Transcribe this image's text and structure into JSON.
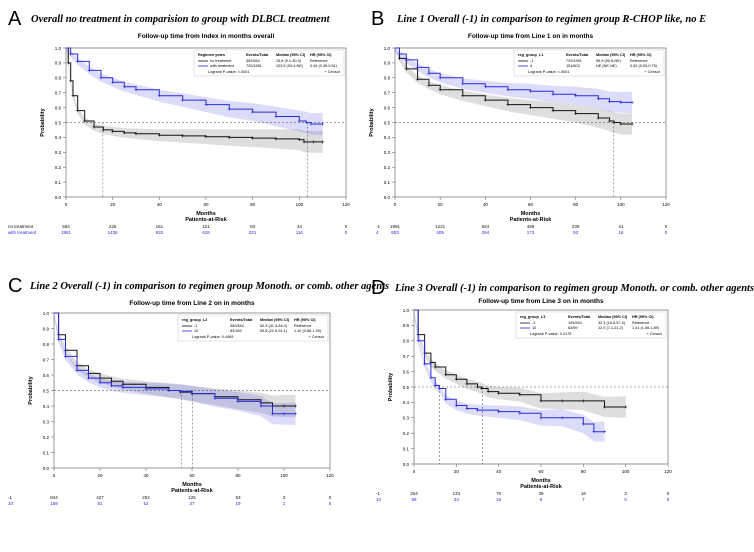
{
  "panels": [
    {
      "letter": "A",
      "caption": "Overall no treatment in comparision to group with DLBCL treatment",
      "chart_data": {
        "type": "line",
        "title": "Follow-up time from Index in months overall",
        "xlabel": "Months",
        "ylabel": "Probability",
        "xlim": [
          0,
          120
        ],
        "ylim": [
          0,
          1.0
        ],
        "x_ticks": [
          0,
          20,
          40,
          60,
          80,
          100,
          120
        ],
        "y_ticks": [
          0.0,
          0.1,
          0.2,
          0.3,
          0.4,
          0.5,
          0.6,
          0.7,
          0.8,
          0.9,
          1.0
        ],
        "legend": {
          "placement": "top-right",
          "header": [
            "Regimen years",
            "Events/Total",
            "Median (95% CI)",
            "HR (95% CI)"
          ],
          "rows": [
            [
              "no treatment",
              "392/564",
              "15.8 (9.1-30.3)",
              "Reference"
            ],
            [
              "with treatment",
              "729/1981",
              "103.5 (93.4-NE)",
              "0.44 (0.39-0.51)"
            ]
          ],
          "pvalue": "Logrank P-value: <.0001",
          "censor": "+ Censor"
        },
        "series": [
          {
            "name": "no treatment",
            "color": "#111111",
            "x": [
              0,
              1,
              2,
              3,
              5,
              8,
              12,
              16,
              20,
              25,
              30,
              40,
              50,
              60,
              70,
              80,
              90,
              100,
              102,
              106,
              110
            ],
            "y": [
              1.0,
              0.9,
              0.78,
              0.68,
              0.58,
              0.51,
              0.47,
              0.45,
              0.44,
              0.43,
              0.425,
              0.415,
              0.41,
              0.405,
              0.4,
              0.395,
              0.39,
              0.385,
              0.37,
              0.37,
              0.37
            ]
          },
          {
            "name": "with treatment",
            "color": "#2a2ad6",
            "x": [
              0,
              2,
              5,
              10,
              15,
              20,
              25,
              30,
              40,
              50,
              60,
              70,
              80,
              90,
              100,
              103,
              105,
              110
            ],
            "y": [
              1.0,
              0.96,
              0.91,
              0.85,
              0.8,
              0.77,
              0.74,
              0.72,
              0.68,
              0.65,
              0.62,
              0.59,
              0.57,
              0.54,
              0.51,
              0.5,
              0.49,
              0.49
            ]
          }
        ],
        "reference_lines": {
          "y": 0.5,
          "x": [
            15.8,
            103.5
          ]
        },
        "risk_table": {
          "title": "Patients-at-Risk",
          "rows": [
            {
              "label": "no treatment",
              "color": "#111111",
              "values": [
                "564",
                "225",
                "161",
                "121",
                "83",
                "34",
                "0"
              ]
            },
            {
              "label": "with treatment",
              "color": "#2a2ad6",
              "values": [
                "1981",
                "1436",
                "933",
                "618",
                "321",
                "116",
                "0"
              ]
            }
          ]
        }
      }
    },
    {
      "letter": "B",
      "caption": "Line 1 Overall (-1) in comparison to regimen group R-CHOP like, no E",
      "chart_data": {
        "type": "line",
        "title": "Follow-up time from Line 1 on in months",
        "xlabel": "Months",
        "ylabel": "Probability",
        "xlim": [
          0,
          120
        ],
        "ylim": [
          0,
          1.0
        ],
        "x_ticks": [
          0,
          20,
          40,
          60,
          80,
          100,
          120
        ],
        "y_ticks": [
          0.0,
          0.1,
          0.2,
          0.3,
          0.4,
          0.5,
          0.6,
          0.7,
          0.8,
          0.9,
          1.0
        ],
        "legend": {
          "placement": "top",
          "header": [
            "reg_group_L1",
            "Events/Total",
            "Median (95% CI)",
            "HR (95% CI)"
          ],
          "rows": [
            [
              "-1",
              "729/1991",
              "96.9 (90.6-NE)",
              "Reference"
            ],
            [
              "4",
              "151/603",
              "NE (NE-NE)",
              "0.63 (0.53-0.75)"
            ]
          ],
          "pvalue": "Logrank P-value: <.0001",
          "censor": "+ Censor"
        },
        "series": [
          {
            "name": "-1",
            "color": "#111111",
            "x": [
              0,
              2,
              5,
              10,
              15,
              20,
              30,
              40,
              50,
              60,
              70,
              80,
              90,
              95,
              97,
              100,
              105
            ],
            "y": [
              1.0,
              0.93,
              0.86,
              0.79,
              0.75,
              0.72,
              0.68,
              0.65,
              0.62,
              0.6,
              0.58,
              0.56,
              0.53,
              0.51,
              0.5,
              0.49,
              0.49
            ]
          },
          {
            "name": "4",
            "color": "#2a2ad6",
            "x": [
              0,
              2,
              5,
              10,
              15,
              20,
              30,
              40,
              50,
              60,
              70,
              80,
              90,
              95,
              100,
              105
            ],
            "y": [
              1.0,
              0.96,
              0.92,
              0.87,
              0.83,
              0.8,
              0.76,
              0.74,
              0.72,
              0.71,
              0.69,
              0.68,
              0.66,
              0.64,
              0.635,
              0.635
            ]
          }
        ],
        "reference_lines": {
          "y": 0.5,
          "x": [
            96.9
          ]
        },
        "risk_table": {
          "title": "Patients-at-Risk",
          "rows": [
            {
              "label": "-1",
              "color": "#111111",
              "values": [
                "1991",
                "1221",
                "824",
                "489",
                "239",
                "41",
                "0"
              ]
            },
            {
              "label": "4",
              "color": "#2a2ad6",
              "values": [
                "603",
                "409",
                "294",
                "173",
                "93",
                "16",
                "0"
              ]
            }
          ]
        }
      }
    },
    {
      "letter": "C",
      "caption": "Line 2 Overall (-1) in comparison to regimen group Monoth. or comb. other agents",
      "chart_data": {
        "type": "line",
        "title": "Follow-up time from Line 2 on in months",
        "xlabel": "Months",
        "ylabel": "Probability",
        "xlim": [
          0,
          120
        ],
        "ylim": [
          0,
          1.0
        ],
        "x_ticks": [
          0,
          20,
          40,
          60,
          80,
          100,
          120
        ],
        "y_ticks": [
          0.0,
          0.1,
          0.2,
          0.3,
          0.4,
          0.5,
          0.6,
          0.7,
          0.8,
          0.9,
          1.0
        ],
        "legend": {
          "placement": "top-right",
          "header": [
            "reg_group_L2",
            "Events/Total",
            "Median (95% CI)",
            "HR (95% CI)"
          ],
          "rows": [
            [
              "-1",
              "362/844",
              "60.3 (41.3-84.0)",
              "Reference"
            ],
            [
              "10",
              "83/169",
              "55.5 (22.9-91.1)",
              "1.10 (0.86-1.39)"
            ]
          ],
          "pvalue": "Logrank P-value: 0.4469",
          "censor": "+ Censor"
        },
        "series": [
          {
            "name": "-1",
            "color": "#111111",
            "x": [
              0,
              2,
              5,
              10,
              15,
              20,
              25,
              30,
              40,
              50,
              55,
              60,
              70,
              80,
              90,
              95,
              100,
              105
            ],
            "y": [
              1.0,
              0.86,
              0.76,
              0.66,
              0.61,
              0.58,
              0.56,
              0.54,
              0.52,
              0.5,
              0.49,
              0.48,
              0.46,
              0.44,
              0.42,
              0.4,
              0.4,
              0.4
            ]
          },
          {
            "name": "10",
            "color": "#2a2ad6",
            "x": [
              0,
              2,
              5,
              10,
              15,
              20,
              25,
              30,
              40,
              50,
              55,
              60,
              70,
              80,
              90,
              95,
              100,
              105
            ],
            "y": [
              1.0,
              0.83,
              0.72,
              0.63,
              0.58,
              0.55,
              0.53,
              0.52,
              0.51,
              0.5,
              0.495,
              0.48,
              0.45,
              0.43,
              0.4,
              0.35,
              0.35,
              0.35
            ]
          }
        ],
        "reference_lines": {
          "y": 0.5,
          "x": [
            55.5,
            60.3
          ]
        },
        "risk_table": {
          "title": "Patients-at-Risk",
          "rows": [
            {
              "label": "-1",
              "color": "#111111",
              "values": [
                "844",
                "427",
                "252",
                "125",
                "53",
                "3",
                "0"
              ]
            },
            {
              "label": "10",
              "color": "#2a2ad6",
              "values": [
                "169",
                "81",
                "52",
                "37",
                "19",
                "1",
                "0"
              ]
            }
          ]
        }
      }
    },
    {
      "letter": "D",
      "caption": "Line 3 Overall (-1) in comparison to regimen group Monoth. or comb. other agents",
      "chart_data": {
        "type": "line",
        "title": "Follow-up time from Line 3 on in months",
        "xlabel": "Months",
        "ylabel": "Probability",
        "xlim": [
          0,
          120
        ],
        "ylim": [
          0,
          1.0
        ],
        "x_ticks": [
          0,
          20,
          40,
          60,
          80,
          100,
          120
        ],
        "y_ticks": [
          0.0,
          0.1,
          0.2,
          0.3,
          0.4,
          0.5,
          0.6,
          0.7,
          0.8,
          0.9,
          1.0
        ],
        "legend": {
          "placement": "top-right",
          "header": [
            "reg_group_L3",
            "Events/Total",
            "Median (95% CI)",
            "HR (95% CI)"
          ],
          "rows": [
            [
              "-1",
              "109/254",
              "32.3 (16.8-57.4)",
              "Reference"
            ],
            [
              "10",
              "63/99",
              "12.0 (7.1-21.2)",
              "1.41 (1.06-1.89)"
            ]
          ],
          "pvalue": "Logrank P-value: 0.0175",
          "censor": "+ Censor"
        },
        "series": [
          {
            "name": "-1",
            "color": "#111111",
            "x": [
              0,
              2,
              5,
              8,
              10,
              15,
              20,
              25,
              30,
              32,
              35,
              40,
              50,
              60,
              70,
              80,
              90,
              100
            ],
            "y": [
              1.0,
              0.84,
              0.72,
              0.66,
              0.63,
              0.58,
              0.55,
              0.52,
              0.5,
              0.49,
              0.47,
              0.46,
              0.45,
              0.41,
              0.41,
              0.41,
              0.37,
              0.37
            ]
          },
          {
            "name": "10",
            "color": "#2a2ad6",
            "x": [
              0,
              2,
              5,
              8,
              10,
              12,
              15,
              20,
              25,
              30,
              40,
              50,
              60,
              70,
              80,
              85,
              90
            ],
            "y": [
              1.0,
              0.8,
              0.65,
              0.56,
              0.51,
              0.49,
              0.42,
              0.38,
              0.36,
              0.35,
              0.34,
              0.33,
              0.3,
              0.3,
              0.26,
              0.21,
              0.21
            ]
          }
        ],
        "reference_lines": {
          "y": 0.5,
          "x": [
            12.0,
            32.3
          ]
        },
        "risk_table": {
          "title": "Patients-at-Risk",
          "rows": [
            {
              "label": "-1",
              "color": "#111111",
              "values": [
                "254",
                "133",
                "70",
                "39",
                "16",
                "2",
                "0"
              ]
            },
            {
              "label": "10",
              "color": "#2a2ad6",
              "values": [
                "99",
                "34",
                "15",
                "9",
                "7",
                "0",
                "0"
              ]
            }
          ]
        }
      }
    }
  ]
}
